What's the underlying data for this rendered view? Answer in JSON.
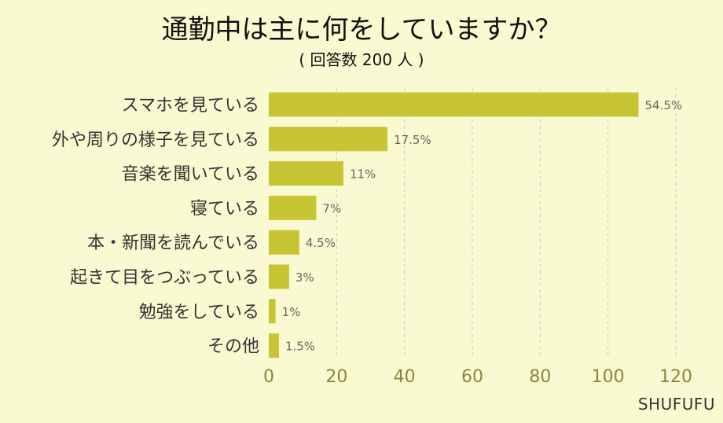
{
  "chart_data": {
    "type": "bar",
    "orientation": "horizontal",
    "title": "通勤中は主に何をしていますか？",
    "subtitle": "( 回答数 200 人 )",
    "categories": [
      "スマホを見ている",
      "外や周りの様子を見ている",
      "音楽を聞いている",
      "寝ている",
      "本・新聞を読んでいる",
      "起きて目をつぶっている",
      "勉強をしている",
      "その他"
    ],
    "values": [
      109,
      35,
      22,
      14,
      9,
      6,
      2,
      3
    ],
    "data_labels": [
      "54.5%",
      "17.5%",
      "11%",
      "7%",
      "4.5%",
      "3%",
      "1%",
      "1.5%"
    ],
    "xlim": [
      0,
      120
    ],
    "x_ticks": [
      0,
      20,
      40,
      60,
      80,
      100,
      120
    ],
    "grid": true,
    "legend": "none"
  },
  "colors": {
    "background": "#fafad2",
    "bar": "#c8c535",
    "axis_text": "#8a8540",
    "category_text": "#333333",
    "value_text": "#666666",
    "grid": "#c8c8c0"
  },
  "brand": "SHUFUFU"
}
